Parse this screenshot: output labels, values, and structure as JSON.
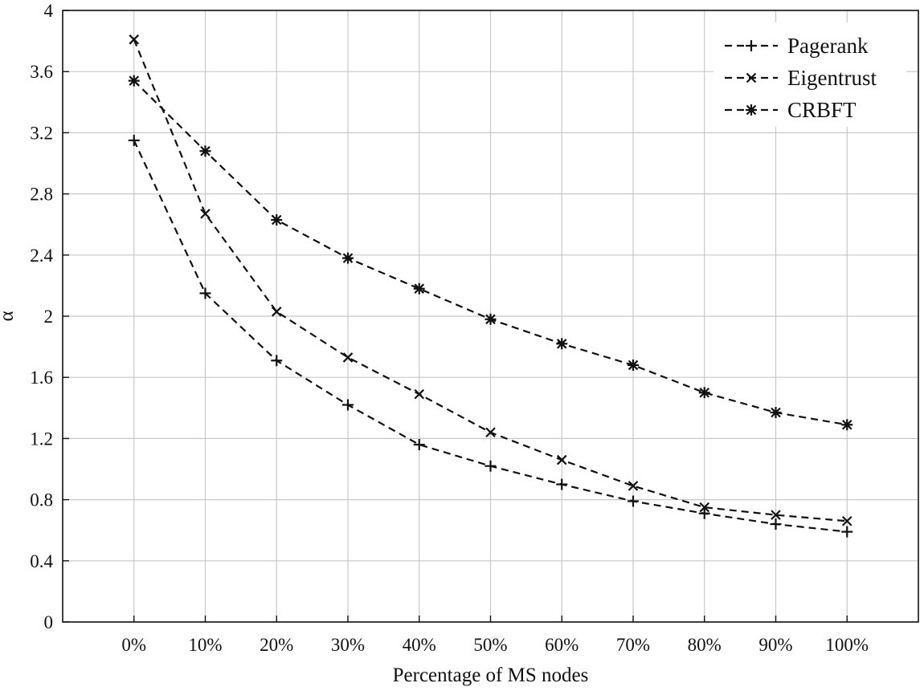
{
  "chart_data": {
    "type": "line",
    "xlabel": "Percentage of MS nodes",
    "ylabel": "α",
    "categories": [
      "0%",
      "10%",
      "20%",
      "30%",
      "40%",
      "50%",
      "60%",
      "70%",
      "80%",
      "90%",
      "100%"
    ],
    "ylim": [
      0,
      4
    ],
    "yticks": [
      "0",
      "0.4",
      "0.8",
      "1.2",
      "1.6",
      "2",
      "2.4",
      "2.8",
      "3.2",
      "3.6",
      "4"
    ],
    "grid": true,
    "legend_position": "top-right",
    "series": [
      {
        "name": "Pagerank",
        "marker": "plus",
        "line": "dashed",
        "values": [
          3.15,
          2.15,
          1.71,
          1.42,
          1.16,
          1.02,
          0.9,
          0.79,
          0.71,
          0.64,
          0.59
        ]
      },
      {
        "name": "Eigentrust",
        "marker": "x",
        "line": "dashed",
        "values": [
          3.81,
          2.67,
          2.03,
          1.73,
          1.49,
          1.24,
          1.06,
          0.89,
          0.75,
          0.7,
          0.66
        ]
      },
      {
        "name": "CRBFT",
        "marker": "star",
        "line": "dashed",
        "values": [
          3.54,
          3.08,
          2.63,
          2.38,
          2.18,
          1.98,
          1.82,
          1.68,
          1.5,
          1.37,
          1.29
        ]
      }
    ],
    "colors": {
      "line": "#111111",
      "grid": "#c8c8c8",
      "background": "#ffffff"
    }
  }
}
